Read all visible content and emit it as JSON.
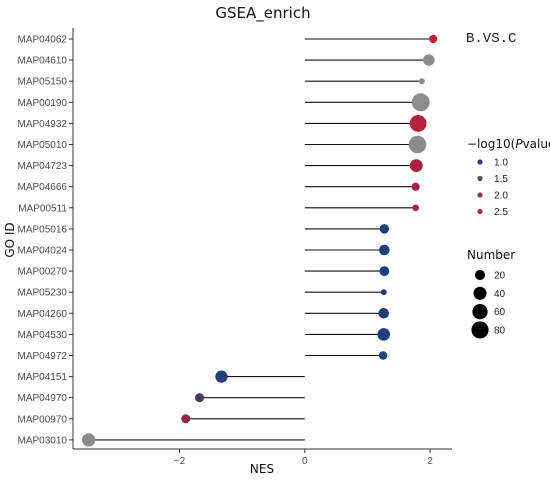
{
  "chart_data": {
    "type": "lollipop",
    "title": "GSEA_enrich",
    "subtitle": "B.VS.C",
    "xlabel": "NES",
    "ylabel": "GO ID",
    "xlim": [
      -3.7,
      2.35
    ],
    "x_ticks": [
      -2,
      0,
      2
    ],
    "x_tick_labels": [
      "−2",
      "0",
      "2"
    ],
    "grid": false,
    "categories": [
      "MAP04062",
      "MAP04610",
      "MAP05150",
      "MAP00190",
      "MAP04932",
      "MAP05010",
      "MAP04723",
      "MAP04666",
      "MAP00511",
      "MAP05016",
      "MAP04024",
      "MAP00270",
      "MAP05230",
      "MAP04260",
      "MAP04530",
      "MAP04972",
      "MAP04151",
      "MAP04970",
      "MAP00970",
      "MAP03010"
    ],
    "values": [
      2.05,
      1.98,
      1.87,
      1.85,
      1.81,
      1.8,
      1.78,
      1.77,
      1.77,
      1.27,
      1.27,
      1.27,
      1.26,
      1.26,
      1.26,
      1.25,
      -1.33,
      -1.68,
      -1.9,
      -3.45
    ],
    "sizes": [
      10,
      28,
      3,
      90,
      76,
      84,
      38,
      10,
      5,
      16,
      22,
      18,
      3,
      22,
      36,
      11,
      34,
      14,
      14,
      42
    ],
    "neglog10_pvalue": [
      2.7,
      null,
      null,
      null,
      2.6,
      null,
      2.5,
      2.5,
      2.4,
      1.0,
      1.0,
      1.0,
      1.0,
      1.0,
      1.0,
      1.0,
      1.1,
      1.5,
      2.2,
      null
    ],
    "na_color": "#8c8c8c",
    "color_legend": {
      "title": "−log10(Pvalue)",
      "title_prefix": "−log10(",
      "title_italic": "P",
      "title_suffix": "value)",
      "items": [
        {
          "label": "1.0",
          "value": 1.0,
          "color": "#2e3f7a"
        },
        {
          "label": "1.5",
          "value": 1.5,
          "color": "#6c3f66"
        },
        {
          "label": "2.0",
          "value": 2.0,
          "color": "#9a3653"
        },
        {
          "label": "2.5",
          "value": 2.5,
          "color": "#b8283a"
        }
      ]
    },
    "size_legend": {
      "title": "Number",
      "items": [
        {
          "label": "20",
          "value": 20
        },
        {
          "label": "40",
          "value": 40
        },
        {
          "label": "60",
          "value": 60
        },
        {
          "label": "80",
          "value": 80
        }
      ]
    },
    "colors": {
      "low": "#1f3f7a",
      "high": "#c01f35",
      "stem": "#111111",
      "axis": "#333333"
    }
  }
}
